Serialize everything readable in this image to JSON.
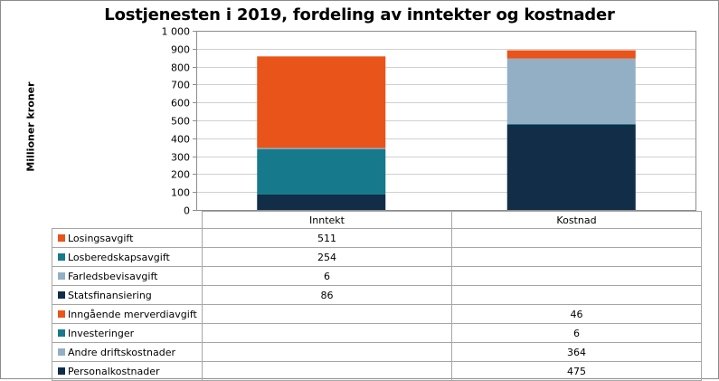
{
  "chart_data": {
    "type": "bar",
    "stacked": true,
    "title": "Lostjenesten i 2019, fordeling av inntekter og kostnader",
    "ylabel": "Millioner kroner",
    "xlabel": "",
    "ylim": [
      0,
      1000
    ],
    "yticks": [
      0,
      100,
      200,
      300,
      400,
      500,
      600,
      700,
      800,
      900,
      1000
    ],
    "ytick_labels": [
      "0",
      "100",
      "200",
      "300",
      "400",
      "500",
      "600",
      "700",
      "800",
      "900",
      "1 000"
    ],
    "categories": [
      "Inntekt",
      "Kostnad"
    ],
    "legend_position": "data-table",
    "series": [
      {
        "name": "Losingsavgift",
        "color": "#E8541A",
        "stack_order": 4,
        "values": [
          511,
          null
        ],
        "labels": [
          "511",
          ""
        ]
      },
      {
        "name": "Losberedskapsavgift",
        "color": "#17798C",
        "stack_order": 2,
        "values": [
          254,
          null
        ],
        "labels": [
          "254",
          ""
        ]
      },
      {
        "name": "Farledsbevisavgift",
        "color": "#93AFC5",
        "stack_order": 3,
        "values": [
          6,
          null
        ],
        "labels": [
          "6",
          ""
        ]
      },
      {
        "name": "Statsfinansiering",
        "color": "#112D47",
        "stack_order": 1,
        "values": [
          86,
          null
        ],
        "labels": [
          "86",
          ""
        ]
      },
      {
        "name": "Inngående merverdiavgift",
        "color": "#E8541A",
        "stack_order": 4,
        "values": [
          null,
          46
        ],
        "labels": [
          "",
          "46"
        ]
      },
      {
        "name": "Investeringer",
        "color": "#17798C",
        "stack_order": 2,
        "values": [
          null,
          6
        ],
        "labels": [
          "",
          "6"
        ]
      },
      {
        "name": "Andre driftskostnader",
        "color": "#93AFC5",
        "stack_order": 3,
        "values": [
          null,
          364
        ],
        "labels": [
          "",
          "364"
        ]
      },
      {
        "name": "Personalkostnader",
        "color": "#112D47",
        "stack_order": 1,
        "values": [
          null,
          475
        ],
        "labels": [
          "",
          "475"
        ]
      }
    ]
  }
}
